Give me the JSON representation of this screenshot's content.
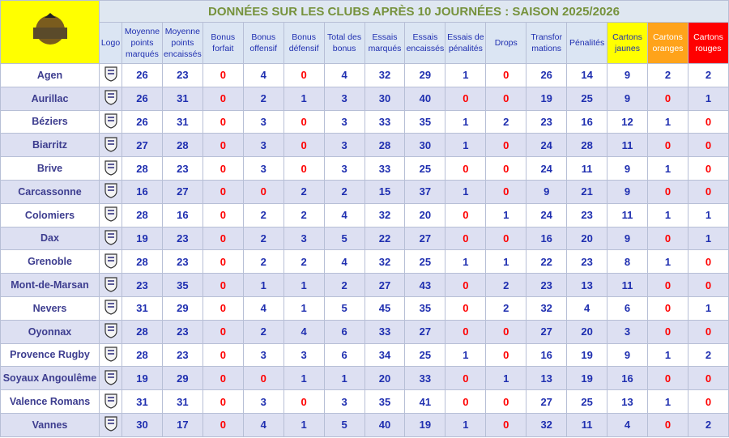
{
  "title": "DONNÉES SUR LES CLUBS APRÈS 10 JOURNÉES : SAISON 2025/2026",
  "headers": [
    "Logo",
    "Moyenne points marqués",
    "Moyenne points encaissés",
    "Bonus forfait",
    "Bonus offensif",
    "Bonus défensif",
    "Total des bonus",
    "Essais marqués",
    "Essais encaissés",
    "Essais de pénalités",
    "Drops",
    "Transfor mations",
    "Pénalités",
    "Cartons jaunes",
    "Cartons oranges",
    "Cartons rouges"
  ],
  "rows": [
    [
      "Agen",
      26,
      23,
      0,
      4,
      0,
      4,
      32,
      29,
      1,
      0,
      26,
      14,
      9,
      2,
      2
    ],
    [
      "Aurillac",
      26,
      31,
      0,
      2,
      1,
      3,
      30,
      40,
      0,
      0,
      19,
      25,
      9,
      0,
      1
    ],
    [
      "Béziers",
      26,
      31,
      0,
      3,
      0,
      3,
      33,
      35,
      1,
      2,
      23,
      16,
      12,
      1,
      0
    ],
    [
      "Biarritz",
      27,
      28,
      0,
      3,
      0,
      3,
      28,
      30,
      1,
      0,
      24,
      28,
      11,
      0,
      0
    ],
    [
      "Brive",
      28,
      23,
      0,
      3,
      0,
      3,
      33,
      25,
      0,
      0,
      24,
      11,
      9,
      1,
      0
    ],
    [
      "Carcassonne",
      16,
      27,
      0,
      0,
      2,
      2,
      15,
      37,
      1,
      0,
      9,
      21,
      9,
      0,
      0
    ],
    [
      "Colomiers",
      28,
      16,
      0,
      2,
      2,
      4,
      32,
      20,
      0,
      1,
      24,
      23,
      11,
      1,
      1
    ],
    [
      "Dax",
      19,
      23,
      0,
      2,
      3,
      5,
      22,
      27,
      0,
      0,
      16,
      20,
      9,
      0,
      1
    ],
    [
      "Grenoble",
      28,
      23,
      0,
      2,
      2,
      4,
      32,
      25,
      1,
      1,
      22,
      23,
      8,
      1,
      0
    ],
    [
      "Mont-de-Marsan",
      23,
      35,
      0,
      1,
      1,
      2,
      27,
      43,
      0,
      2,
      23,
      13,
      11,
      0,
      0
    ],
    [
      "Nevers",
      31,
      29,
      0,
      4,
      1,
      5,
      45,
      35,
      0,
      2,
      32,
      4,
      6,
      0,
      1
    ],
    [
      "Oyonnax",
      28,
      23,
      0,
      2,
      4,
      6,
      33,
      27,
      0,
      0,
      27,
      20,
      3,
      0,
      0
    ],
    [
      "Provence Rugby",
      28,
      23,
      0,
      3,
      3,
      6,
      34,
      25,
      1,
      0,
      16,
      19,
      9,
      1,
      2
    ],
    [
      "Soyaux Angoulême",
      19,
      29,
      0,
      0,
      1,
      1,
      20,
      33,
      0,
      1,
      13,
      19,
      16,
      0,
      0
    ],
    [
      "Valence Romans",
      31,
      31,
      0,
      3,
      0,
      3,
      35,
      41,
      0,
      0,
      27,
      25,
      13,
      1,
      0
    ],
    [
      "Vannes",
      30,
      17,
      0,
      4,
      1,
      5,
      40,
      19,
      1,
      0,
      32,
      11,
      4,
      0,
      2
    ]
  ]
}
